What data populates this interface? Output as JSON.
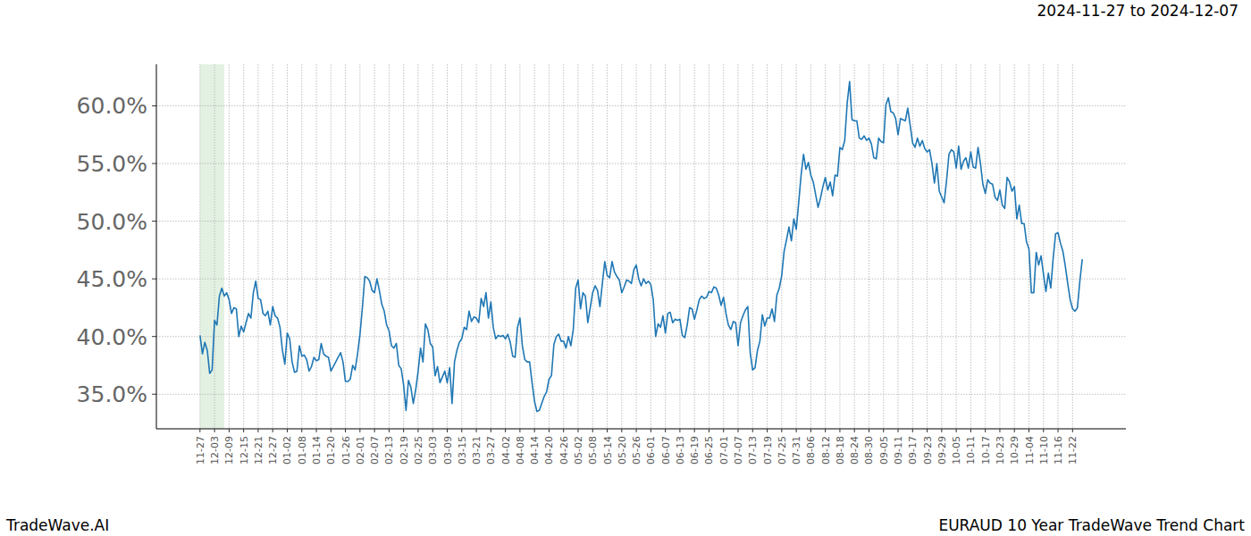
{
  "chart_data": {
    "type": "line",
    "title": "EURAUD 10 Year TradeWave Trend Chart",
    "subtitle": "2024-11-27 to 2024-12-07",
    "annotations": [
      "TradeWave.AI"
    ],
    "color": "#1f77b4",
    "grid": true,
    "highlight": {
      "start": 0,
      "end": 10
    },
    "ylim": [
      32.0,
      63.6
    ],
    "yticks": [
      {
        "value": 35,
        "label": "35.0%"
      },
      {
        "value": 40,
        "label": "40.0%"
      },
      {
        "value": 45,
        "label": "45.0%"
      },
      {
        "value": 50,
        "label": "50.0%"
      },
      {
        "value": 55,
        "label": "55.0%"
      },
      {
        "value": 60,
        "label": "60.0%"
      }
    ],
    "categories": [
      "11-27",
      null,
      null,
      null,
      null,
      null,
      "12-03",
      null,
      null,
      null,
      null,
      null,
      "12-09",
      null,
      null,
      null,
      null,
      null,
      "12-15",
      null,
      null,
      null,
      null,
      null,
      "12-21",
      null,
      null,
      null,
      null,
      null,
      "12-27",
      null,
      null,
      null,
      null,
      null,
      "01-02",
      null,
      null,
      null,
      null,
      null,
      "01-08",
      null,
      null,
      null,
      null,
      null,
      "01-14",
      null,
      null,
      null,
      null,
      null,
      "01-20",
      null,
      null,
      null,
      null,
      null,
      "01-26",
      null,
      null,
      null,
      null,
      null,
      "02-01",
      null,
      null,
      null,
      null,
      null,
      "02-07",
      null,
      null,
      null,
      null,
      null,
      "02-13",
      null,
      null,
      null,
      null,
      null,
      "02-19",
      null,
      null,
      null,
      null,
      null,
      "02-25",
      null,
      null,
      null,
      null,
      null,
      "03-03",
      null,
      null,
      null,
      null,
      null,
      "03-09",
      null,
      null,
      null,
      null,
      null,
      "03-15",
      null,
      null,
      null,
      null,
      null,
      "03-21",
      null,
      null,
      null,
      null,
      null,
      "03-27",
      null,
      null,
      null,
      null,
      null,
      "04-02",
      null,
      null,
      null,
      null,
      null,
      "04-08",
      null,
      null,
      null,
      null,
      null,
      "04-14",
      null,
      null,
      null,
      null,
      null,
      "04-20",
      null,
      null,
      null,
      null,
      null,
      "04-26",
      null,
      null,
      null,
      null,
      null,
      "05-02",
      null,
      null,
      null,
      null,
      null,
      "05-08",
      null,
      null,
      null,
      null,
      null,
      "05-14",
      null,
      null,
      null,
      null,
      null,
      "05-20",
      null,
      null,
      null,
      null,
      null,
      "05-26",
      null,
      null,
      null,
      null,
      null,
      "06-01",
      null,
      null,
      null,
      null,
      null,
      "06-07",
      null,
      null,
      null,
      null,
      null,
      "06-13",
      null,
      null,
      null,
      null,
      null,
      "06-19",
      null,
      null,
      null,
      null,
      null,
      "06-25",
      null,
      null,
      null,
      null,
      null,
      "07-01",
      null,
      null,
      null,
      null,
      null,
      "07-07",
      null,
      null,
      null,
      null,
      null,
      "07-13",
      null,
      null,
      null,
      null,
      null,
      "07-19",
      null,
      null,
      null,
      null,
      null,
      "07-25",
      null,
      null,
      null,
      null,
      null,
      "07-31",
      null,
      null,
      null,
      null,
      null,
      "08-06",
      null,
      null,
      null,
      null,
      null,
      "08-12",
      null,
      null,
      null,
      null,
      null,
      "08-18",
      null,
      null,
      null,
      null,
      null,
      "08-24",
      null,
      null,
      null,
      null,
      null,
      "08-30",
      null,
      null,
      null,
      null,
      null,
      "09-05",
      null,
      null,
      null,
      null,
      null,
      "09-11",
      null,
      null,
      null,
      null,
      null,
      "09-17",
      null,
      null,
      null,
      null,
      null,
      "09-23",
      null,
      null,
      null,
      null,
      null,
      "09-29",
      null,
      null,
      null,
      null,
      null,
      "10-05",
      null,
      null,
      null,
      null,
      null,
      "10-11",
      null,
      null,
      null,
      null,
      null,
      "10-17",
      null,
      null,
      null,
      null,
      null,
      "10-23",
      null,
      null,
      null,
      null,
      null,
      "10-29",
      null,
      null,
      null,
      null,
      null,
      "11-04",
      null,
      null,
      null,
      null,
      null,
      "11-10",
      null,
      null,
      null,
      null,
      null,
      "11-16",
      null,
      null,
      null,
      null,
      null,
      "11-22",
      null,
      null,
      null,
      null
    ],
    "values": [
      40.1,
      38.5,
      39.5,
      38.8,
      36.8,
      37.1,
      41.4,
      41.0,
      43.5,
      44.2,
      43.5,
      43.8,
      43.2,
      42.0,
      42.5,
      42.4,
      40.0,
      40.9,
      40.4,
      41.2,
      42.0,
      41.6,
      43.8,
      44.8,
      43.3,
      43.2,
      42.0,
      41.8,
      42.2,
      41.0,
      42.6,
      41.8,
      41.6,
      40.8,
      38.8,
      37.6,
      40.3,
      39.8,
      37.8,
      36.9,
      37.0,
      39.2,
      38.3,
      38.4,
      38.0,
      37.0,
      37.4,
      38.2,
      37.9,
      38.0,
      39.4,
      38.5,
      38.3,
      38.2,
      37.0,
      37.4,
      37.8,
      38.2,
      38.6,
      37.8,
      36.1,
      36.1,
      36.3,
      37.5,
      37.1,
      38.5,
      40.2,
      42.5,
      45.2,
      45.1,
      44.8,
      44.0,
      43.8,
      45.0,
      44.0,
      42.8,
      42.2,
      41.0,
      40.5,
      39.2,
      39.0,
      39.4,
      37.5,
      37.2,
      35.8,
      33.6,
      36.2,
      35.6,
      34.2,
      35.4,
      37.0,
      39.0,
      37.8,
      41.1,
      40.6,
      39.4,
      39.1,
      36.6,
      37.4,
      36.0,
      36.5,
      37.0,
      36.0,
      37.3,
      34.2,
      37.8,
      38.8,
      39.5,
      39.8,
      40.8,
      40.6,
      42.2,
      41.3,
      41.7,
      41.6,
      41.2,
      43.3,
      42.6,
      43.8,
      41.6,
      43.0,
      40.8,
      39.8,
      40.1,
      40.0,
      40.1,
      39.8,
      40.2,
      39.5,
      38.3,
      38.2,
      40.8,
      41.6,
      39.2,
      38.0,
      37.8,
      37.8,
      36.0,
      34.4,
      33.5,
      33.6,
      34.2,
      34.8,
      35.2,
      36.3,
      36.6,
      39.3,
      40.0,
      40.2,
      39.6,
      39.6,
      39.0,
      40.0,
      39.2,
      40.6,
      44.2,
      44.9,
      42.4,
      43.8,
      43.5,
      41.2,
      42.5,
      43.8,
      44.4,
      44.0,
      42.6,
      44.6,
      46.5,
      45.3,
      45.1,
      46.5,
      45.6,
      45.2,
      44.9,
      43.8,
      44.3,
      44.9,
      44.8,
      44.6,
      45.8,
      46.2,
      45.0,
      44.4,
      45.0,
      44.6,
      44.8,
      44.5,
      43.2,
      40.0,
      41.1,
      40.8,
      41.8,
      40.3,
      42.0,
      42.1,
      41.2,
      41.5,
      41.4,
      41.5,
      40.1,
      39.9,
      41.0,
      42.5,
      42.4,
      41.5,
      42.3,
      43.2,
      43.5,
      43.3,
      43.4,
      43.9,
      43.8,
      44.3,
      44.2,
      43.6,
      42.7,
      43.4,
      42.0,
      41.0,
      40.6,
      41.3,
      41.2,
      39.2,
      41.2,
      41.8,
      42.3,
      42.6,
      38.6,
      37.1,
      37.3,
      38.8,
      39.6,
      41.9,
      40.9,
      41.6,
      41.6,
      42.4,
      41.3,
      43.6,
      44.2,
      45.3,
      47.4,
      48.4,
      49.5,
      48.3,
      50.2,
      49.3,
      51.6,
      54.0,
      55.8,
      54.5,
      55.1,
      54.0,
      53.4,
      52.3,
      51.2,
      52.0,
      53.0,
      53.8,
      52.7,
      53.4,
      52.2,
      54.0,
      53.9,
      56.4,
      56.2,
      57.0,
      60.2,
      62.1,
      58.8,
      58.7,
      58.7,
      57.2,
      57.1,
      57.4,
      57.0,
      57.2,
      56.7,
      55.5,
      55.4,
      57.2,
      56.9,
      56.8,
      60.1,
      60.7,
      59.5,
      59.4,
      58.9,
      57.5,
      58.9,
      58.8,
      58.7,
      59.8,
      58.3,
      56.8,
      56.4,
      57.2,
      56.5,
      57.0,
      56.3,
      56.0,
      56.2,
      55.0,
      53.3,
      55.0,
      52.6,
      52.1,
      51.6,
      53.5,
      55.8,
      56.2,
      56.0,
      54.6,
      56.5,
      54.5,
      55.2,
      55.5,
      54.6,
      56.0,
      54.7,
      54.6,
      56.4,
      55.0,
      53.2,
      52.4,
      53.6,
      53.3,
      53.2,
      52.1,
      51.8,
      52.7,
      51.4,
      51.1,
      53.8,
      53.4,
      52.6,
      53.0,
      50.2,
      51.4,
      49.8,
      49.8,
      48.2,
      47.6,
      43.8,
      43.8,
      47.3,
      46.2,
      47.0,
      45.4,
      43.9,
      45.5,
      44.2,
      46.8,
      48.9,
      49.0,
      48.1,
      47.4,
      46.1,
      44.6,
      43.2,
      42.4,
      42.2,
      42.5,
      44.8,
      46.7
    ]
  }
}
